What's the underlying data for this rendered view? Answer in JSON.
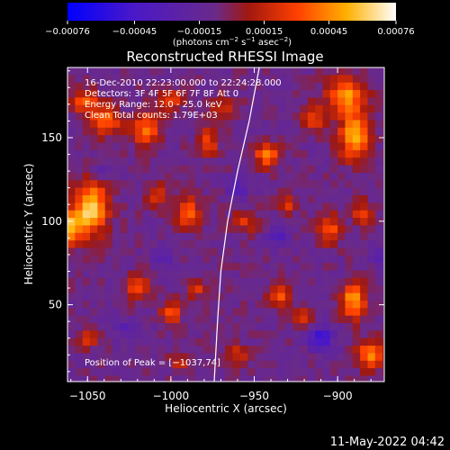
{
  "chart_data": {
    "type": "heatmap",
    "title": "Reconstructed RHESSI Image",
    "xlabel": "Heliocentric X (arcsec)",
    "ylabel": "Heliocentric Y (arcsec)",
    "xlim": [
      -1062,
      -872
    ],
    "ylim": [
      4,
      192
    ],
    "x_ticks": [
      -1050,
      -1000,
      -950,
      -900
    ],
    "x_tick_labels": [
      "−1050",
      "−1000",
      "−950",
      "−900"
    ],
    "y_ticks": [
      50,
      100,
      150
    ],
    "y_tick_labels": [
      "50",
      "100",
      "150"
    ],
    "colorbar": {
      "range": [
        -0.00076,
        0.00076
      ],
      "ticks": [
        -0.00076,
        -0.00045,
        -0.00015,
        0.00015,
        0.00045,
        0.00076
      ],
      "tick_labels": [
        "−0.00076",
        "−0.00045",
        "−0.00015",
        "0.00015",
        "0.00045",
        "0.00076"
      ],
      "unit_label_parts": [
        "(photons cm",
        "−2",
        " s",
        "−1",
        " asec",
        "−2",
        ")"
      ],
      "colors": [
        "#0000ff",
        "#5a10c0",
        "#7030a0",
        "#b02000",
        "#ff6000",
        "#ffc000",
        "#ffffff"
      ]
    },
    "annotation_lines": [
      "16-Dec-2010 22:23:00.000 to 22:24:28.000",
      "Detectors: 3F 4F 5F 6F 7F 8F  Att 0",
      "Energy Range: 12.0 - 25.0 keV",
      "Clean     Total counts: 1.79E+03"
    ],
    "peak_label": "Position of Peak = [−1037,74]",
    "hot_sources": [
      {
        "x": -1048,
        "y": 108,
        "sx": 7,
        "sy": 11,
        "amp": 0.0007
      },
      {
        "x": -1060,
        "y": 96,
        "sx": 5,
        "sy": 7,
        "amp": 0.00055
      },
      {
        "x": -1040,
        "y": 160,
        "sx": 7,
        "sy": 6,
        "amp": 0.00045
      },
      {
        "x": -1052,
        "y": 172,
        "sx": 6,
        "sy": 5,
        "amp": 0.0004
      },
      {
        "x": -1015,
        "y": 155,
        "sx": 6,
        "sy": 7,
        "amp": 0.00048
      },
      {
        "x": -1000,
        "y": 172,
        "sx": 5,
        "sy": 5,
        "amp": 0.00035
      },
      {
        "x": -978,
        "y": 148,
        "sx": 4,
        "sy": 6,
        "amp": 0.0004
      },
      {
        "x": -968,
        "y": 168,
        "sx": 5,
        "sy": 5,
        "amp": 0.0003
      },
      {
        "x": -942,
        "y": 140,
        "sx": 5,
        "sy": 5,
        "amp": 0.00055
      },
      {
        "x": -915,
        "y": 162,
        "sx": 5,
        "sy": 5,
        "amp": 0.00038
      },
      {
        "x": -890,
        "y": 150,
        "sx": 6,
        "sy": 9,
        "amp": 0.00065
      },
      {
        "x": -895,
        "y": 175,
        "sx": 8,
        "sy": 8,
        "amp": 0.00055
      },
      {
        "x": -990,
        "y": 105,
        "sx": 5,
        "sy": 6,
        "amp": 0.00048
      },
      {
        "x": -1008,
        "y": 115,
        "sx": 4,
        "sy": 5,
        "amp": 0.00035
      },
      {
        "x": -955,
        "y": 100,
        "sx": 5,
        "sy": 5,
        "amp": 0.00028
      },
      {
        "x": -930,
        "y": 110,
        "sx": 4,
        "sy": 4,
        "amp": 0.0003
      },
      {
        "x": -905,
        "y": 95,
        "sx": 5,
        "sy": 6,
        "amp": 0.00042
      },
      {
        "x": -885,
        "y": 105,
        "sx": 4,
        "sy": 5,
        "amp": 0.00035
      },
      {
        "x": -1020,
        "y": 60,
        "sx": 5,
        "sy": 5,
        "amp": 0.0004
      },
      {
        "x": -1000,
        "y": 45,
        "sx": 4,
        "sy": 5,
        "amp": 0.00042
      },
      {
        "x": -985,
        "y": 60,
        "sx": 4,
        "sy": 4,
        "amp": 0.0003
      },
      {
        "x": -1050,
        "y": 30,
        "sx": 4,
        "sy": 4,
        "amp": 0.0003
      },
      {
        "x": -935,
        "y": 55,
        "sx": 5,
        "sy": 5,
        "amp": 0.00042
      },
      {
        "x": -922,
        "y": 42,
        "sx": 4,
        "sy": 4,
        "amp": 0.0003
      },
      {
        "x": -890,
        "y": 52,
        "sx": 5,
        "sy": 7,
        "amp": 0.0006
      },
      {
        "x": -880,
        "y": 20,
        "sx": 6,
        "sy": 6,
        "amp": 0.00055
      },
      {
        "x": -960,
        "y": 20,
        "sx": 4,
        "sy": 4,
        "amp": 0.00028
      },
      {
        "x": -995,
        "y": 15,
        "sx": 4,
        "sy": 4,
        "amp": 0.00025
      }
    ],
    "cold_sources": [
      {
        "x": -910,
        "y": 30,
        "sx": 5,
        "sy": 5,
        "amp": 0.00045
      },
      {
        "x": -935,
        "y": 90,
        "sx": 5,
        "sy": 4,
        "amp": 0.00025
      },
      {
        "x": -960,
        "y": 120,
        "sx": 5,
        "sy": 5,
        "amp": 0.00022
      },
      {
        "x": -1025,
        "y": 35,
        "sx": 6,
        "sy": 5,
        "amp": 0.0002
      },
      {
        "x": -1005,
        "y": 80,
        "sx": 5,
        "sy": 5,
        "amp": 0.00018
      },
      {
        "x": -1040,
        "y": 130,
        "sx": 5,
        "sy": 4,
        "amp": 0.00015
      },
      {
        "x": -875,
        "y": 80,
        "sx": 4,
        "sy": 4,
        "amp": 0.0002
      }
    ],
    "limb_curve": [
      [
        -947,
        192
      ],
      [
        -953,
        160
      ],
      [
        -960,
        130
      ],
      [
        -966,
        100
      ],
      [
        -970,
        70
      ],
      [
        -972,
        40
      ],
      [
        -974,
        4
      ]
    ]
  },
  "footer_date": "11-May-2022 04:42"
}
